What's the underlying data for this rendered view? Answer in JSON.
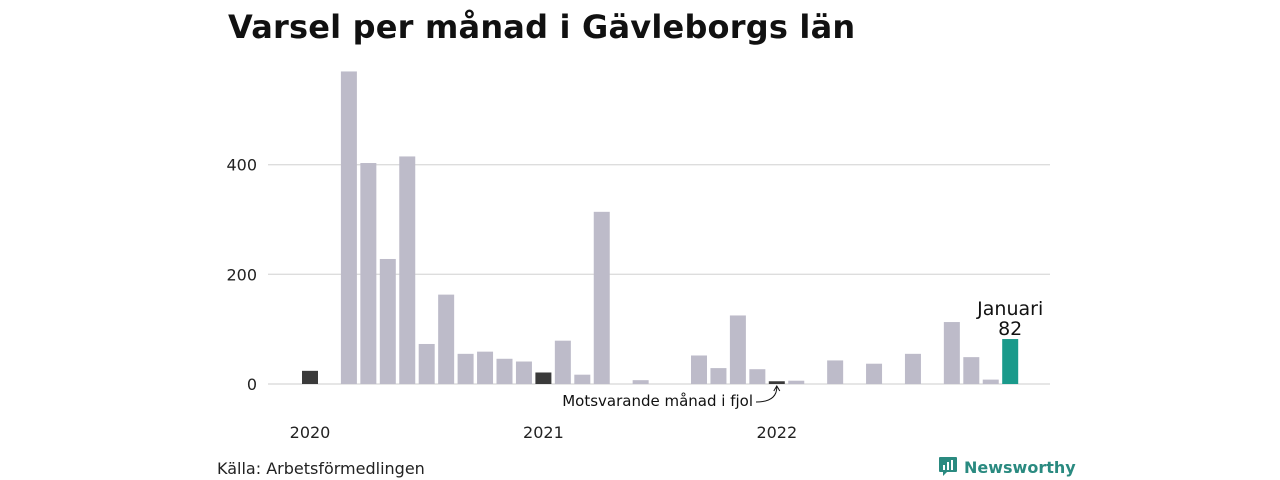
{
  "title": "Varsel per månad i Gävleborgs län",
  "source": "Källa: Arbetsförmedlingen",
  "brand": {
    "name": "Newsworthy",
    "icon": "bar-chart-logo-icon"
  },
  "colors": {
    "bar": "#bdbbc9",
    "previous_year_month": "#3a3a3a",
    "highlight": "#1a9a8b",
    "grid": "#dddddd"
  },
  "chart_data": {
    "type": "bar",
    "title": "Varsel per månad i Gävleborgs län",
    "xlabel": "",
    "ylabel": "",
    "ylim": [
      0,
      580
    ],
    "yticks": [
      0,
      200,
      400
    ],
    "grid": true,
    "year_labels": [
      {
        "label": "2020",
        "index": 0
      },
      {
        "label": "2021",
        "index": 12
      },
      {
        "label": "2022",
        "index": 24
      }
    ],
    "values": [
      24,
      null,
      570,
      403,
      228,
      415,
      73,
      163,
      55,
      59,
      46,
      41,
      21,
      79,
      17,
      314,
      null,
      7,
      null,
      null,
      52,
      29,
      125,
      27,
      5,
      6,
      null,
      43,
      null,
      37,
      null,
      55,
      null,
      113,
      49,
      8,
      82
    ],
    "previous_year_indices": [
      0,
      12,
      24
    ],
    "highlight_index": 36,
    "annotations": {
      "highlight_label": "Januari",
      "highlight_value": "82",
      "previous_year_label": "Motsvarande månad i fjol"
    }
  }
}
